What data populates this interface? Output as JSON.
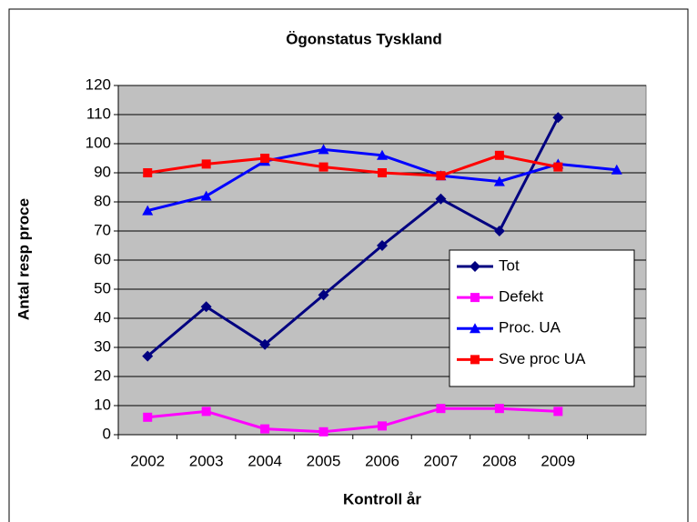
{
  "chart_data": {
    "type": "line",
    "title": "Ögonstatus Tyskland",
    "x_label": "Kontroll år",
    "y_label": "Antal resp proce",
    "categories": [
      "2002",
      "2003",
      "2004",
      "2005",
      "2006",
      "2007",
      "2008",
      "2009",
      null
    ],
    "series": [
      {
        "name": "Tot",
        "color": "#000080",
        "marker": "diamond",
        "values": [
          27,
          44,
          31,
          48,
          65,
          81,
          70,
          109,
          null
        ]
      },
      {
        "name": "Defekt",
        "color": "#ff00ff",
        "marker": "square",
        "values": [
          6,
          8,
          2,
          1,
          3,
          9,
          9,
          8,
          null
        ]
      },
      {
        "name": "Proc. UA",
        "color": "#0000ff",
        "marker": "triangle",
        "values": [
          77,
          82,
          94,
          98,
          96,
          89,
          87,
          93,
          91
        ]
      },
      {
        "name": "Sve proc UA",
        "color": "#ff0000",
        "marker": "square",
        "values": [
          90,
          93,
          95,
          92,
          90,
          89,
          96,
          92,
          null
        ]
      }
    ],
    "ylim": [
      0,
      120
    ],
    "yticks": [
      0,
      10,
      20,
      30,
      40,
      50,
      60,
      70,
      80,
      90,
      100,
      110,
      120
    ],
    "grid": true,
    "legend": "right"
  }
}
